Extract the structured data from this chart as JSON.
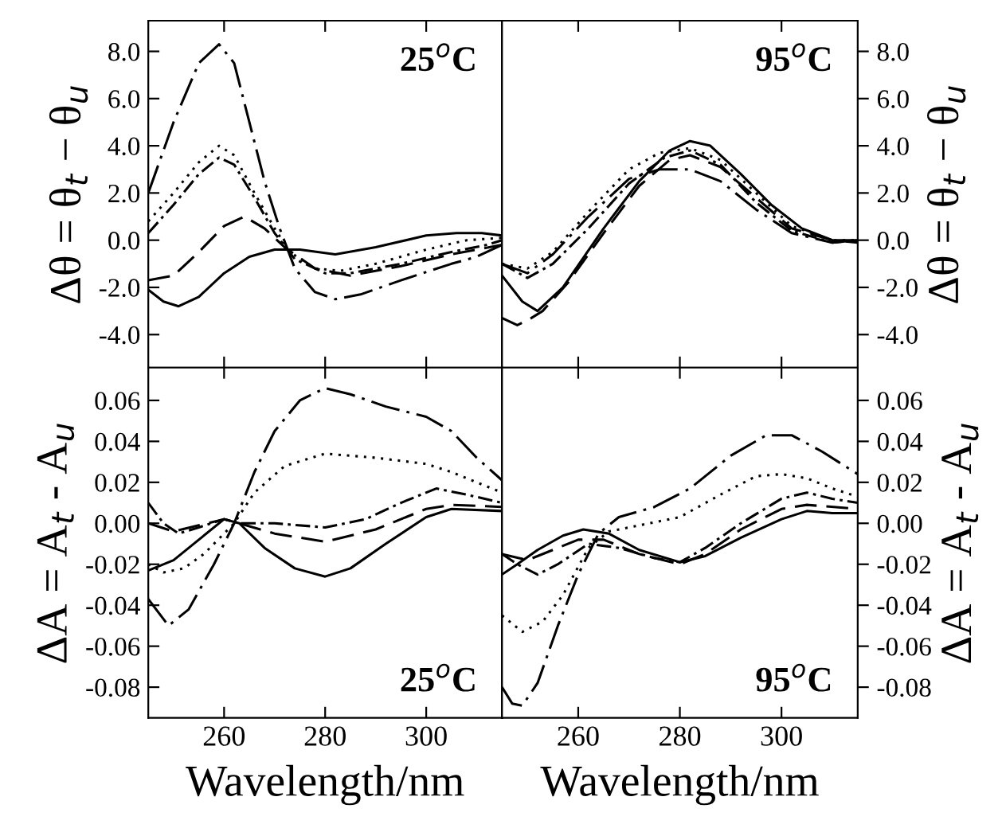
{
  "chart_data": [
    {
      "type": "line",
      "ylabel": "Δθ = θ$_{t}$ − θ$_{u}$",
      "annotations": [
        "25$^{o}$C"
      ],
      "xlim": [
        245,
        315
      ],
      "xticks": [
        {
          "value": 260,
          "label": null
        },
        {
          "value": 280,
          "label": null
        },
        {
          "value": 300,
          "label": null
        }
      ],
      "ylim": [
        -5.4,
        9.3
      ],
      "yticks": [
        {
          "value": -4,
          "label": "-4.0"
        },
        {
          "value": -2,
          "label": "-2.0"
        },
        {
          "value": 0,
          "label": "0.0"
        },
        {
          "value": 2,
          "label": "2.0"
        },
        {
          "value": 4,
          "label": "4.0"
        },
        {
          "value": 6,
          "label": "6.0"
        },
        {
          "value": 8,
          "label": "8.0"
        }
      ],
      "tick_labels": "y",
      "series": [
        {
          "color": "#000000",
          "line_style": "solid",
          "x": [
            245,
            248,
            251,
            255,
            260,
            265,
            270,
            275,
            282,
            290,
            300,
            306,
            311,
            315
          ],
          "values": [
            -2.1,
            -2.6,
            -2.8,
            -2.4,
            -1.4,
            -0.7,
            -0.4,
            -0.4,
            -0.6,
            -0.3,
            0.2,
            0.3,
            0.3,
            0.2
          ]
        },
        {
          "color": "#000000",
          "line_style": "dashed",
          "x": [
            245,
            250,
            255,
            260,
            264,
            268,
            272,
            278,
            285,
            295,
            305,
            315
          ],
          "values": [
            -1.7,
            -1.5,
            -0.5,
            0.6,
            1.0,
            0.5,
            -0.3,
            -1.2,
            -1.5,
            -1.1,
            -0.6,
            -0.2
          ]
        },
        {
          "color": "#000000",
          "line_style": "dashdot",
          "x": [
            245,
            250,
            255,
            259,
            262,
            266,
            270,
            274,
            280,
            285,
            295,
            305,
            312,
            315
          ],
          "values": [
            0.3,
            1.5,
            2.8,
            3.5,
            3.2,
            1.8,
            0.3,
            -0.8,
            -1.4,
            -1.4,
            -1.0,
            -0.5,
            -0.2,
            0.0
          ]
        },
        {
          "color": "#000000",
          "line_style": "dotted",
          "x": [
            245,
            250,
            255,
            259,
            262,
            266,
            270,
            273,
            278,
            283,
            290,
            300,
            308,
            315
          ],
          "values": [
            0.8,
            2.0,
            3.3,
            4.0,
            3.6,
            2.0,
            0.5,
            -0.5,
            -1.2,
            -1.3,
            -1.0,
            -0.4,
            0.0,
            0.1
          ]
        },
        {
          "color": "#000000",
          "line_style": "longdashdot",
          "x": [
            245,
            250,
            255,
            259,
            262,
            265,
            268,
            271,
            274,
            278,
            282,
            287,
            295,
            305,
            310,
            315
          ],
          "values": [
            2.0,
            5.0,
            7.5,
            8.3,
            7.5,
            5.0,
            2.5,
            0.5,
            -1.2,
            -2.2,
            -2.5,
            -2.3,
            -1.7,
            -1.0,
            -0.7,
            -0.2
          ]
        }
      ]
    },
    {
      "type": "line",
      "ylabel": "Δθ = θ$_{t}$ − θ$_{u}$",
      "annotations": [
        "95$^{o}$C"
      ],
      "xlim": [
        245,
        315
      ],
      "xticks": [
        {
          "value": 260,
          "label": null
        },
        {
          "value": 280,
          "label": null
        },
        {
          "value": 300,
          "label": null
        }
      ],
      "ylim": [
        -5.4,
        9.3
      ],
      "yticks": [
        {
          "value": -4,
          "label": "-4.0"
        },
        {
          "value": -2,
          "label": "-2.0"
        },
        {
          "value": 0,
          "label": "0.0"
        },
        {
          "value": 2,
          "label": "2.0"
        },
        {
          "value": 4,
          "label": "4.0"
        },
        {
          "value": 6,
          "label": "6.0"
        },
        {
          "value": 8,
          "label": "8.0"
        }
      ],
      "tick_labels": "y",
      "series": [
        {
          "color": "#000000",
          "line_style": "solid",
          "x": [
            245,
            249,
            252,
            257,
            265,
            272,
            278,
            282,
            286,
            292,
            298,
            304,
            310,
            315
          ],
          "values": [
            -1.5,
            -2.6,
            -3.0,
            -2.0,
            0.5,
            2.5,
            3.8,
            4.2,
            4.0,
            2.8,
            1.5,
            0.5,
            0.0,
            0.0
          ]
        },
        {
          "color": "#000000",
          "line_style": "dashed",
          "x": [
            245,
            248,
            250,
            253,
            258,
            265,
            272,
            278,
            282,
            288,
            295,
            302,
            310,
            315
          ],
          "values": [
            -3.3,
            -3.6,
            -3.4,
            -3.0,
            -1.8,
            0.3,
            2.3,
            3.4,
            3.6,
            3.1,
            1.8,
            0.5,
            0.0,
            -0.1
          ]
        },
        {
          "color": "#000000",
          "line_style": "dashdot",
          "x": [
            245,
            250,
            255,
            262,
            270,
            277,
            282,
            288,
            295,
            302,
            310,
            315
          ],
          "values": [
            -1.0,
            -1.6,
            -1.0,
            0.5,
            2.4,
            3.5,
            3.8,
            3.2,
            1.6,
            0.4,
            -0.1,
            0.0
          ]
        },
        {
          "color": "#000000",
          "line_style": "dotted",
          "x": [
            245,
            250,
            255,
            262,
            270,
            276,
            282,
            288,
            295,
            302,
            310,
            315
          ],
          "values": [
            -1.0,
            -1.2,
            -0.5,
            1.2,
            3.0,
            3.7,
            3.9,
            3.4,
            2.0,
            0.6,
            0.0,
            0.0
          ]
        },
        {
          "color": "#000000",
          "line_style": "longdashdot",
          "x": [
            245,
            250,
            255,
            262,
            270,
            276,
            282,
            288,
            295,
            302,
            310,
            315
          ],
          "values": [
            -1.0,
            -1.4,
            -0.6,
            1.0,
            2.6,
            3.0,
            3.0,
            2.5,
            1.3,
            0.3,
            -0.1,
            0.0
          ]
        }
      ]
    },
    {
      "type": "line",
      "xlabel": "Wavelength/nm",
      "ylabel": "ΔA = A$_{t}$ - A$_{u}$",
      "annotations": [
        "25$^{o}$C"
      ],
      "xlim": [
        245,
        315
      ],
      "xticks": [
        260,
        280,
        300
      ],
      "ylim": [
        -0.095,
        0.076
      ],
      "yticks": [
        {
          "value": -0.08,
          "label": "-0.08"
        },
        {
          "value": -0.06,
          "label": "-0.06"
        },
        {
          "value": -0.04,
          "label": "-0.04"
        },
        {
          "value": -0.02,
          "label": "-0.02"
        },
        {
          "value": 0,
          "label": "0.00"
        },
        {
          "value": 0.02,
          "label": "0.02"
        },
        {
          "value": 0.04,
          "label": "0.04"
        },
        {
          "value": 0.06,
          "label": "0.06"
        }
      ],
      "series": [
        {
          "color": "#000000",
          "line_style": "solid",
          "x": [
            245,
            250,
            255,
            260,
            263,
            268,
            274,
            280,
            285,
            292,
            300,
            305,
            315
          ],
          "values": [
            -0.023,
            -0.018,
            -0.008,
            0.002,
            0.0,
            -0.012,
            -0.022,
            -0.026,
            -0.022,
            -0.01,
            0.003,
            0.007,
            0.006
          ]
        },
        {
          "color": "#000000",
          "line_style": "dashed",
          "x": [
            245,
            250,
            255,
            260,
            263,
            270,
            280,
            290,
            300,
            305,
            315
          ],
          "values": [
            0.0,
            -0.004,
            -0.001,
            0.002,
            0.0,
            -0.005,
            -0.009,
            -0.003,
            0.007,
            0.009,
            0.008
          ]
        },
        {
          "color": "#000000",
          "line_style": "dashdot",
          "x": [
            245,
            248,
            251,
            255,
            260,
            263,
            270,
            280,
            288,
            295,
            302,
            308,
            315
          ],
          "values": [
            0.01,
            0.0,
            -0.005,
            -0.002,
            0.002,
            0.0,
            0.0,
            -0.002,
            0.002,
            0.01,
            0.017,
            0.014,
            0.01
          ]
        },
        {
          "color": "#000000",
          "line_style": "dotted",
          "x": [
            245,
            248,
            252,
            256,
            262,
            266,
            272,
            280,
            290,
            300,
            305,
            310,
            315
          ],
          "values": [
            -0.02,
            -0.024,
            -0.022,
            -0.015,
            0.0,
            0.015,
            0.028,
            0.034,
            0.032,
            0.029,
            0.025,
            0.02,
            0.015
          ]
        },
        {
          "color": "#000000",
          "line_style": "longdashdot",
          "x": [
            245,
            249,
            253,
            258,
            262,
            266,
            270,
            275,
            280,
            285,
            292,
            300,
            305,
            310,
            315
          ],
          "values": [
            -0.037,
            -0.05,
            -0.042,
            -0.02,
            0.0,
            0.025,
            0.045,
            0.06,
            0.066,
            0.063,
            0.057,
            0.052,
            0.045,
            0.032,
            0.021
          ]
        }
      ]
    },
    {
      "type": "line",
      "xlabel": "Wavelength/nm",
      "ylabel": "ΔA = A$_{t}$ - A$_{u}$",
      "annotations": [
        "95$^{o}$C"
      ],
      "xlim": [
        245,
        315
      ],
      "xticks": [
        260,
        280,
        300
      ],
      "ylim": [
        -0.095,
        0.076
      ],
      "yticks": [
        {
          "value": -0.08,
          "label": "-0.08"
        },
        {
          "value": -0.06,
          "label": "-0.06"
        },
        {
          "value": -0.04,
          "label": "-0.04"
        },
        {
          "value": -0.02,
          "label": "-0.02"
        },
        {
          "value": 0,
          "label": "0.00"
        },
        {
          "value": 0.02,
          "label": "0.02"
        },
        {
          "value": 0.04,
          "label": "0.04"
        },
        {
          "value": 0.06,
          "label": "0.06"
        }
      ],
      "series": [
        {
          "color": "#000000",
          "line_style": "solid",
          "x": [
            245,
            248,
            252,
            257,
            261,
            266,
            272,
            280,
            285,
            292,
            300,
            305,
            310,
            315
          ],
          "values": [
            -0.025,
            -0.02,
            -0.013,
            -0.006,
            -0.003,
            -0.005,
            -0.013,
            -0.019,
            -0.016,
            -0.007,
            0.002,
            0.006,
            0.005,
            0.005
          ]
        },
        {
          "color": "#000000",
          "line_style": "dashed",
          "x": [
            245,
            250,
            255,
            260,
            265,
            272,
            280,
            285,
            292,
            300,
            305,
            315
          ],
          "values": [
            -0.015,
            -0.018,
            -0.013,
            -0.008,
            -0.008,
            -0.015,
            -0.02,
            -0.015,
            -0.003,
            0.007,
            0.009,
            0.007
          ]
        },
        {
          "color": "#000000",
          "line_style": "dashdot",
          "x": [
            245,
            248,
            252,
            256,
            262,
            268,
            275,
            280,
            285,
            292,
            300,
            305,
            310,
            315
          ],
          "values": [
            -0.015,
            -0.02,
            -0.025,
            -0.02,
            -0.01,
            -0.012,
            -0.017,
            -0.019,
            -0.012,
            0.0,
            0.012,
            0.015,
            0.012,
            0.01
          ]
        },
        {
          "color": "#000000",
          "line_style": "dotted",
          "x": [
            245,
            249,
            253,
            257,
            262,
            266,
            272,
            280,
            288,
            295,
            300,
            305,
            310,
            315
          ],
          "values": [
            -0.045,
            -0.053,
            -0.048,
            -0.035,
            -0.012,
            -0.004,
            -0.001,
            0.003,
            0.014,
            0.023,
            0.024,
            0.022,
            0.017,
            0.013
          ]
        },
        {
          "color": "#000000",
          "line_style": "longdashdot",
          "x": [
            245,
            247,
            249,
            252,
            256,
            260,
            264,
            268,
            275,
            282,
            290,
            297,
            302,
            308,
            315
          ],
          "values": [
            -0.08,
            -0.088,
            -0.089,
            -0.078,
            -0.05,
            -0.025,
            -0.005,
            0.003,
            0.008,
            0.017,
            0.033,
            0.043,
            0.043,
            0.035,
            0.024
          ]
        }
      ]
    }
  ]
}
